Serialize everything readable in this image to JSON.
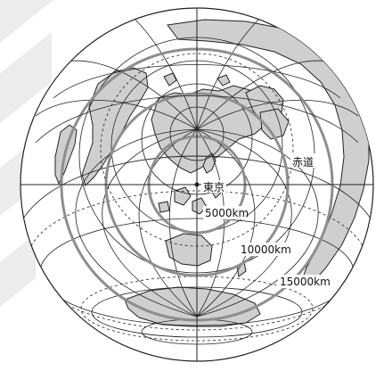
{
  "map": {
    "center_label": "東京",
    "equator_label": "赤道",
    "distance_labels": [
      "5000km",
      "10000km",
      "15000km"
    ],
    "colors": {
      "land": "#cfcfcf",
      "outline": "#222222",
      "grid": "#222222",
      "distance_rings": "#8e8e8e",
      "background": "#ffffff",
      "watermark": "#ececec"
    }
  }
}
